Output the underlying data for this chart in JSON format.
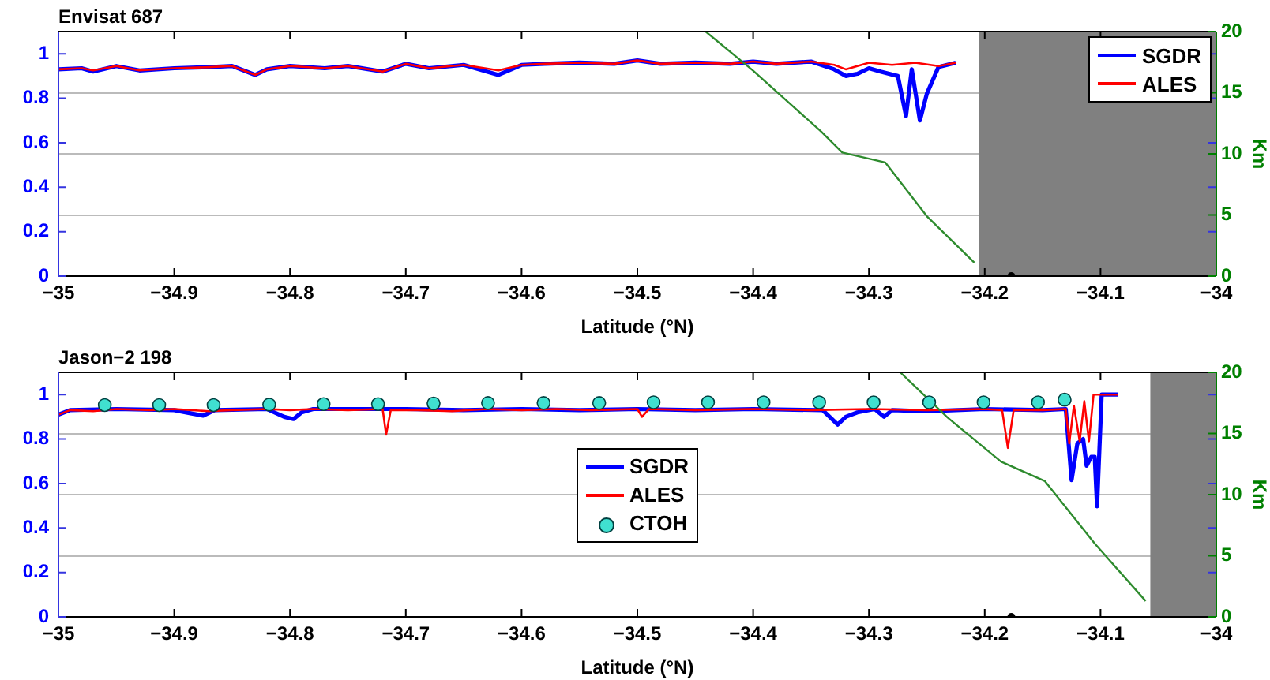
{
  "chart_data": [
    {
      "type": "line",
      "title": "Envisat 687",
      "xlabel": "Latitude (°N)",
      "y2label": "Km",
      "xlim": [
        -35,
        -34
      ],
      "xticks": [
        -35,
        -34.9,
        -34.8,
        -34.7,
        -34.6,
        -34.5,
        -34.4,
        -34.3,
        -34.2,
        -34.1,
        -34
      ],
      "ylim": [
        0,
        1.1
      ],
      "yticks": [
        0,
        0.2,
        0.4,
        0.6,
        0.8,
        1
      ],
      "y2lim": [
        0,
        20
      ],
      "y2ticks": [
        0,
        5,
        10,
        15,
        20
      ],
      "grid": "y2",
      "legend": "top right",
      "marker": "none",
      "line_style": "solid",
      "bands": [
        {
          "axis": "x",
          "from": -34.205,
          "to": -34,
          "color": "#808080"
        }
      ],
      "series": [
        {
          "name": "SGDR",
          "color": "#0000ff",
          "x": [
            -35,
            -34.98,
            -34.97,
            -34.95,
            -34.93,
            -34.9,
            -34.87,
            -34.85,
            -34.83,
            -34.82,
            -34.8,
            -34.77,
            -34.75,
            -34.72,
            -34.7,
            -34.68,
            -34.65,
            -34.62,
            -34.6,
            -34.58,
            -34.55,
            -34.52,
            -34.5,
            -34.48,
            -34.45,
            -34.42,
            -34.4,
            -34.38,
            -34.35,
            -34.33,
            -34.32,
            -34.31,
            -34.3,
            -34.29,
            -34.275,
            -34.268,
            -34.263,
            -34.256,
            -34.25,
            -34.24,
            -34.225
          ],
          "values": [
            0.93,
            0.935,
            0.92,
            0.945,
            0.925,
            0.935,
            0.94,
            0.945,
            0.905,
            0.93,
            0.945,
            0.935,
            0.945,
            0.92,
            0.955,
            0.935,
            0.95,
            0.905,
            0.95,
            0.955,
            0.96,
            0.955,
            0.97,
            0.955,
            0.96,
            0.955,
            0.965,
            0.955,
            0.965,
            0.93,
            0.9,
            0.91,
            0.935,
            0.92,
            0.9,
            0.72,
            0.93,
            0.7,
            0.82,
            0.94,
            0.96
          ]
        },
        {
          "name": "ALES",
          "color": "#ff0000",
          "x": [
            -35,
            -34.98,
            -34.97,
            -34.95,
            -34.93,
            -34.9,
            -34.87,
            -34.85,
            -34.83,
            -34.82,
            -34.8,
            -34.77,
            -34.75,
            -34.72,
            -34.7,
            -34.68,
            -34.65,
            -34.62,
            -34.6,
            -34.58,
            -34.55,
            -34.52,
            -34.5,
            -34.48,
            -34.45,
            -34.42,
            -34.4,
            -34.38,
            -34.35,
            -34.33,
            -34.32,
            -34.3,
            -34.28,
            -34.26,
            -34.24,
            -34.225
          ],
          "values": [
            0.93,
            0.935,
            0.925,
            0.945,
            0.925,
            0.935,
            0.94,
            0.945,
            0.905,
            0.93,
            0.945,
            0.935,
            0.945,
            0.92,
            0.955,
            0.935,
            0.95,
            0.925,
            0.95,
            0.955,
            0.96,
            0.955,
            0.97,
            0.955,
            0.96,
            0.955,
            0.965,
            0.955,
            0.965,
            0.95,
            0.93,
            0.96,
            0.95,
            0.96,
            0.945,
            0.96
          ]
        },
        {
          "color": "#2e8b2e",
          "axis": "y2",
          "x": [
            -34.441,
            -34.4,
            -34.341,
            -34.323,
            -34.286,
            -34.25,
            -34.209
          ],
          "values": [
            20,
            16.8,
            11.8,
            10.1,
            9.3,
            4.9,
            1.1
          ]
        },
        {
          "type": "scatter",
          "marker": "circle",
          "color": "#000000",
          "x": [
            -34.177
          ],
          "values": [
            0
          ]
        }
      ]
    },
    {
      "type": "line",
      "title": "Jason−2 198",
      "xlabel": "Latitude (°N)",
      "y2label": "Km",
      "xlim": [
        -35,
        -34
      ],
      "xticks": [
        -35,
        -34.9,
        -34.8,
        -34.7,
        -34.6,
        -34.5,
        -34.4,
        -34.3,
        -34.2,
        -34.1,
        -34
      ],
      "ylim": [
        0,
        1.1
      ],
      "yticks": [
        0,
        0.2,
        0.4,
        0.6,
        0.8,
        1
      ],
      "y2lim": [
        0,
        20
      ],
      "y2ticks": [
        0,
        5,
        10,
        15,
        20
      ],
      "grid": "y2",
      "legend": "center",
      "marker": "none",
      "line_style": "solid",
      "bands": [
        {
          "axis": "x",
          "from": -34.057,
          "to": -34,
          "color": "#808080"
        }
      ],
      "series": [
        {
          "name": "SGDR",
          "color": "#0000ff",
          "x": [
            -35,
            -34.99,
            -34.95,
            -34.9,
            -34.885,
            -34.875,
            -34.865,
            -34.82,
            -34.805,
            -34.797,
            -34.79,
            -34.78,
            -34.72,
            -34.7,
            -34.65,
            -34.6,
            -34.55,
            -34.5,
            -34.45,
            -34.4,
            -34.34,
            -34.327,
            -34.32,
            -34.31,
            -34.295,
            -34.287,
            -34.28,
            -34.25,
            -34.2,
            -34.15,
            -34.13,
            -34.125,
            -34.12,
            -34.115,
            -34.112,
            -34.108,
            -34.105,
            -34.103,
            -34.099,
            -34.085
          ],
          "values": [
            0.91,
            0.93,
            0.935,
            0.93,
            0.915,
            0.905,
            0.93,
            0.935,
            0.9,
            0.89,
            0.92,
            0.935,
            0.935,
            0.935,
            0.93,
            0.935,
            0.93,
            0.935,
            0.93,
            0.935,
            0.93,
            0.865,
            0.9,
            0.92,
            0.935,
            0.9,
            0.93,
            0.925,
            0.935,
            0.93,
            0.935,
            0.615,
            0.78,
            0.8,
            0.68,
            0.72,
            0.72,
            0.497,
            1.0,
            1.0
          ]
        },
        {
          "name": "ALES",
          "color": "#ff0000",
          "x": [
            -35,
            -34.99,
            -34.97,
            -34.95,
            -34.92,
            -34.9,
            -34.87,
            -34.85,
            -34.82,
            -34.8,
            -34.78,
            -34.75,
            -34.72,
            -34.717,
            -34.713,
            -34.69,
            -34.66,
            -34.63,
            -34.6,
            -34.57,
            -34.54,
            -34.5,
            -34.496,
            -34.49,
            -34.45,
            -34.4,
            -34.35,
            -34.3,
            -34.25,
            -34.2,
            -34.185,
            -34.18,
            -34.175,
            -34.15,
            -34.13,
            -34.127,
            -34.123,
            -34.118,
            -34.114,
            -34.11,
            -34.106,
            -34.085
          ],
          "values": [
            0.91,
            0.93,
            0.925,
            0.935,
            0.93,
            0.935,
            0.925,
            0.93,
            0.935,
            0.93,
            0.935,
            0.93,
            0.935,
            0.82,
            0.93,
            0.93,
            0.925,
            0.935,
            0.93,
            0.935,
            0.93,
            0.935,
            0.9,
            0.935,
            0.93,
            0.935,
            0.93,
            0.935,
            0.93,
            0.935,
            0.93,
            0.76,
            0.93,
            0.93,
            0.935,
            0.78,
            0.95,
            0.79,
            0.97,
            0.79,
            1.0,
            1.0
          ]
        },
        {
          "name": "CTOH",
          "type": "scatter",
          "marker": "circle",
          "color": "#40e0d0",
          "x": [
            -34.96,
            -34.913,
            -34.866,
            -34.818,
            -34.771,
            -34.724,
            -34.676,
            -34.629,
            -34.581,
            -34.533,
            -34.486,
            -34.439,
            -34.391,
            -34.343,
            -34.296,
            -34.248,
            -34.201,
            -34.154,
            -34.131
          ],
          "values": [
            0.953,
            0.953,
            0.953,
            0.955,
            0.957,
            0.957,
            0.96,
            0.962,
            0.962,
            0.962,
            0.965,
            0.965,
            0.965,
            0.965,
            0.965,
            0.965,
            0.965,
            0.965,
            0.977
          ]
        },
        {
          "color": "#2e8b2e",
          "axis": "y2",
          "x": [
            -34.273,
            -34.232,
            -34.186,
            -34.148,
            -34.105,
            -34.061
          ],
          "values": [
            20,
            16.3,
            12.7,
            11.1,
            6.0,
            1.3
          ]
        },
        {
          "type": "scatter",
          "marker": "circle",
          "color": "#000000",
          "x": [
            -34.177
          ],
          "values": [
            0
          ]
        }
      ]
    }
  ]
}
